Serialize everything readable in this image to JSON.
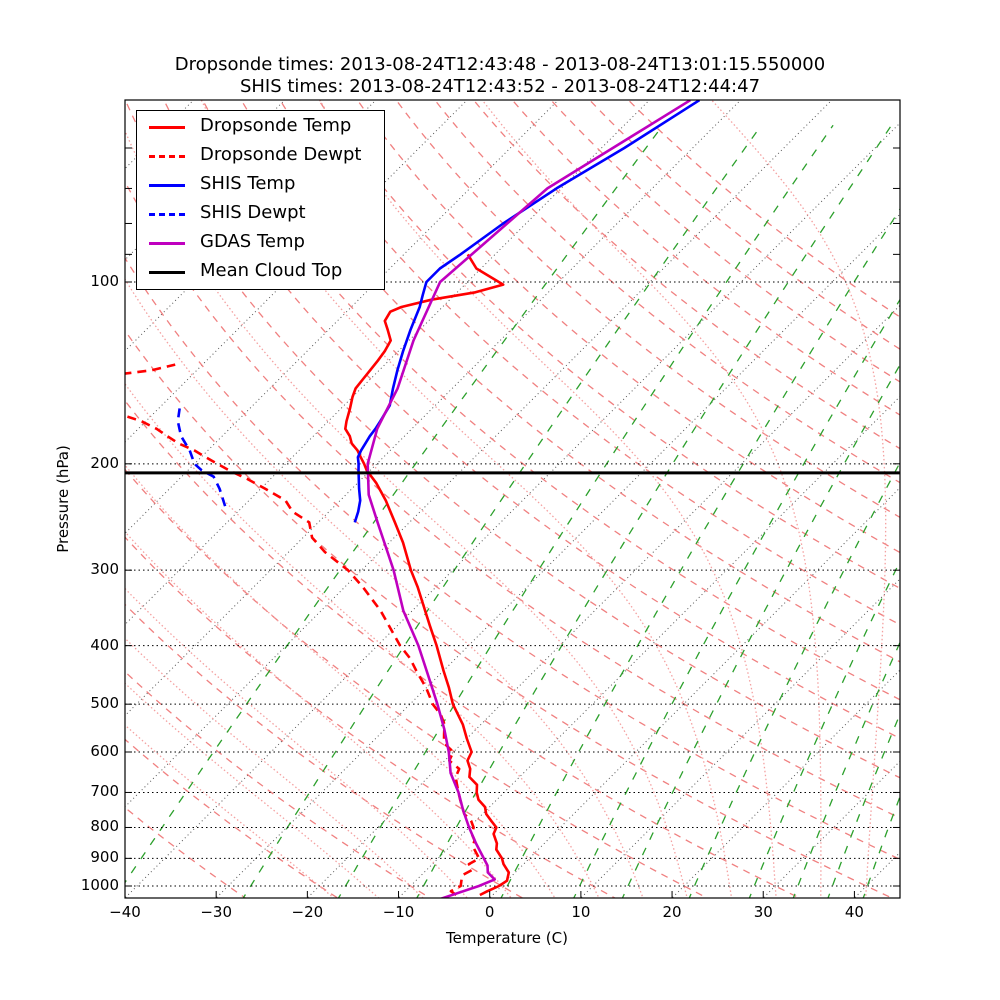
{
  "chart_data": {
    "type": "line",
    "subtype": "skew-t log-p",
    "title_lines": [
      "Dropsonde times: 2013-08-24T12:43:48 - 2013-08-24T13:01:15.550000",
      "SHIS times: 2013-08-24T12:43:52 - 2013-08-24T12:44:47"
    ],
    "xlabel": "Temperature (C)",
    "ylabel": "Pressure (hPa)",
    "xlim": [
      -40,
      45
    ],
    "ylim": [
      1050,
      50
    ],
    "yscale": "log",
    "x_ticks": [
      -40,
      -30,
      -20,
      -10,
      0,
      10,
      20,
      30,
      40
    ],
    "x_tick_labels": [
      "−40",
      "−30",
      "−20",
      "−10",
      "0",
      "10",
      "20",
      "30",
      "40"
    ],
    "y_ticks": [
      100,
      200,
      300,
      400,
      500,
      600,
      700,
      800,
      900,
      1000
    ],
    "y_tick_labels": [
      "100",
      "200",
      "300",
      "400",
      "500",
      "600",
      "700",
      "800",
      "900",
      "1000"
    ],
    "legend_position": "upper-left",
    "legend": [
      {
        "label": "Dropsonde Temp",
        "color": "#ff0000",
        "style": "solid"
      },
      {
        "label": "Dropsonde Dewpt",
        "color": "#ff0000",
        "style": "dashed"
      },
      {
        "label": "SHIS Temp",
        "color": "#0000ff",
        "style": "solid"
      },
      {
        "label": "SHIS Dewpt",
        "color": "#0000ff",
        "style": "dashed"
      },
      {
        "label": "GDAS Temp",
        "color": "#bf00bf",
        "style": "solid"
      },
      {
        "label": "Mean Cloud Top",
        "color": "#000000",
        "style": "solid"
      }
    ],
    "mean_cloud_top_hPa": 207,
    "series": [
      {
        "name": "Dropsonde Temp",
        "color": "#ff0000",
        "style": "solid",
        "p": [
          1035,
          1020,
          1000,
          980,
          950,
          920,
          900,
          870,
          850,
          820,
          800,
          780,
          760,
          740,
          720,
          700,
          680,
          660,
          640,
          620,
          600,
          570,
          540,
          500,
          470,
          440,
          400,
          370,
          350,
          320,
          300,
          270,
          250,
          230,
          215,
          205,
          200,
          195,
          190,
          185,
          180,
          175,
          170,
          162,
          155,
          150,
          145,
          140,
          135,
          130,
          125,
          120,
          116,
          112,
          110,
          107,
          104,
          101,
          95,
          90
        ],
        "t": [
          -1.4,
          -1.0,
          -0.3,
          0.0,
          -0.7,
          -2.2,
          -3.0,
          -4.6,
          -5.2,
          -6.6,
          -7.0,
          -8.3,
          -9.6,
          -10.5,
          -12.0,
          -13.0,
          -13.8,
          -15.5,
          -16.3,
          -17.5,
          -18.0,
          -20.0,
          -22.0,
          -25.3,
          -27.5,
          -30.0,
          -33.5,
          -36.5,
          -38.6,
          -42.0,
          -44.6,
          -48.5,
          -51.6,
          -55.0,
          -58.0,
          -60.4,
          -61.4,
          -62.5,
          -63.6,
          -65.0,
          -66.0,
          -67.3,
          -68.0,
          -69.0,
          -70.0,
          -70.6,
          -70.8,
          -71.0,
          -71.2,
          -71.5,
          -72.0,
          -73.5,
          -74.8,
          -75.2,
          -74.5,
          -72.0,
          -68.0,
          -65.8,
          -70.5,
          -73.0
        ]
      },
      {
        "name": "Dropsonde Dewpt",
        "color": "#ff0000",
        "style": "dashed",
        "p": [
          1035,
          1020,
          1000,
          980,
          960,
          940,
          920,
          900,
          880,
          860,
          840,
          820,
          800,
          780,
          760,
          740,
          720,
          700,
          680,
          660,
          640,
          620,
          600,
          580,
          560,
          540,
          520,
          500,
          470,
          440,
          420,
          400,
          370,
          350,
          320,
          300,
          280,
          265,
          250,
          240,
          230,
          220,
          212,
          205,
          200,
          195,
          190,
          185,
          180,
          175,
          170,
          165,
          160,
          155,
          150,
          145,
          140,
          137
        ],
        "t": [
          -4.0,
          -5.0,
          -4.5,
          -5.0,
          -5.5,
          -5.0,
          -6.0,
          -5.5,
          -6.5,
          -7.5,
          -8.0,
          -9.0,
          -9.5,
          -10.5,
          -12.0,
          -13.0,
          -14.0,
          -15.0,
          -16.0,
          -17.0,
          -17.5,
          -19.5,
          -20.0,
          -22.0,
          -23.0,
          -24.0,
          -25.5,
          -27.5,
          -30.0,
          -33.0,
          -35.0,
          -37.5,
          -41.0,
          -43.5,
          -48.0,
          -51.5,
          -56.0,
          -59.0,
          -61.0,
          -64.0,
          -66.0,
          -69.5,
          -72.5,
          -75.5,
          -77.5,
          -79.5,
          -81.5,
          -84.0,
          -86.0,
          -88.0,
          -90.5,
          -94.0,
          -98.5,
          -104.0,
          -110.0,
          -102.0,
          -95.0,
          -93.0
        ]
      },
      {
        "name": "SHIS Temp",
        "color": "#0000ff",
        "style": "solid",
        "p": [
          250,
          240,
          230,
          220,
          212,
          205,
          200,
          195,
          190,
          185,
          180,
          175,
          170,
          160,
          150,
          140,
          130,
          120,
          110,
          105,
          100,
          95,
          90,
          80,
          70,
          60,
          50
        ],
        "t": [
          -56.0,
          -56.8,
          -57.8,
          -59.2,
          -60.3,
          -61.3,
          -62.0,
          -62.8,
          -63.2,
          -63.5,
          -63.8,
          -64.0,
          -64.3,
          -65.0,
          -66.5,
          -68.0,
          -69.5,
          -71.0,
          -72.5,
          -73.5,
          -74.5,
          -74.5,
          -73.8,
          -72.5,
          -70.5,
          -67.5,
          -64.5
        ]
      },
      {
        "name": "SHIS Dewpt",
        "color": "#0000ff",
        "style": "dashed",
        "p": [
          235,
          220,
          210,
          205,
          200,
          190,
          180,
          170,
          160
        ],
        "t": [
          -72.0,
          -74.5,
          -76.5,
          -78.5,
          -80.0,
          -82.0,
          -84.5,
          -86.5,
          -88.0
        ]
      },
      {
        "name": "GDAS Temp",
        "color": "#bf00bf",
        "style": "solid",
        "p": [
          1050,
          1000,
          975,
          950,
          925,
          900,
          850,
          800,
          750,
          700,
          650,
          600,
          550,
          500,
          450,
          400,
          350,
          300,
          250,
          225,
          200,
          175,
          150,
          125,
          100,
          70,
          50
        ],
        "t": [
          -5.3,
          -2.5,
          -1.5,
          -3.0,
          -3.8,
          -5.0,
          -7.5,
          -10.0,
          -12.5,
          -15.0,
          -18.0,
          -20.5,
          -23.5,
          -27.0,
          -31.0,
          -35.5,
          -41.0,
          -46.5,
          -53.5,
          -57.5,
          -61.0,
          -63.8,
          -66.0,
          -69.5,
          -73.0,
          -71.5,
          -65.5
        ]
      }
    ],
    "background_lines": {
      "isotherms_C": "dotted grey, every 10",
      "dry_adiabats": "dashed salmon",
      "moist_adiabats": "dotted salmon",
      "mixing_ratio_lines": "dashed green"
    }
  }
}
